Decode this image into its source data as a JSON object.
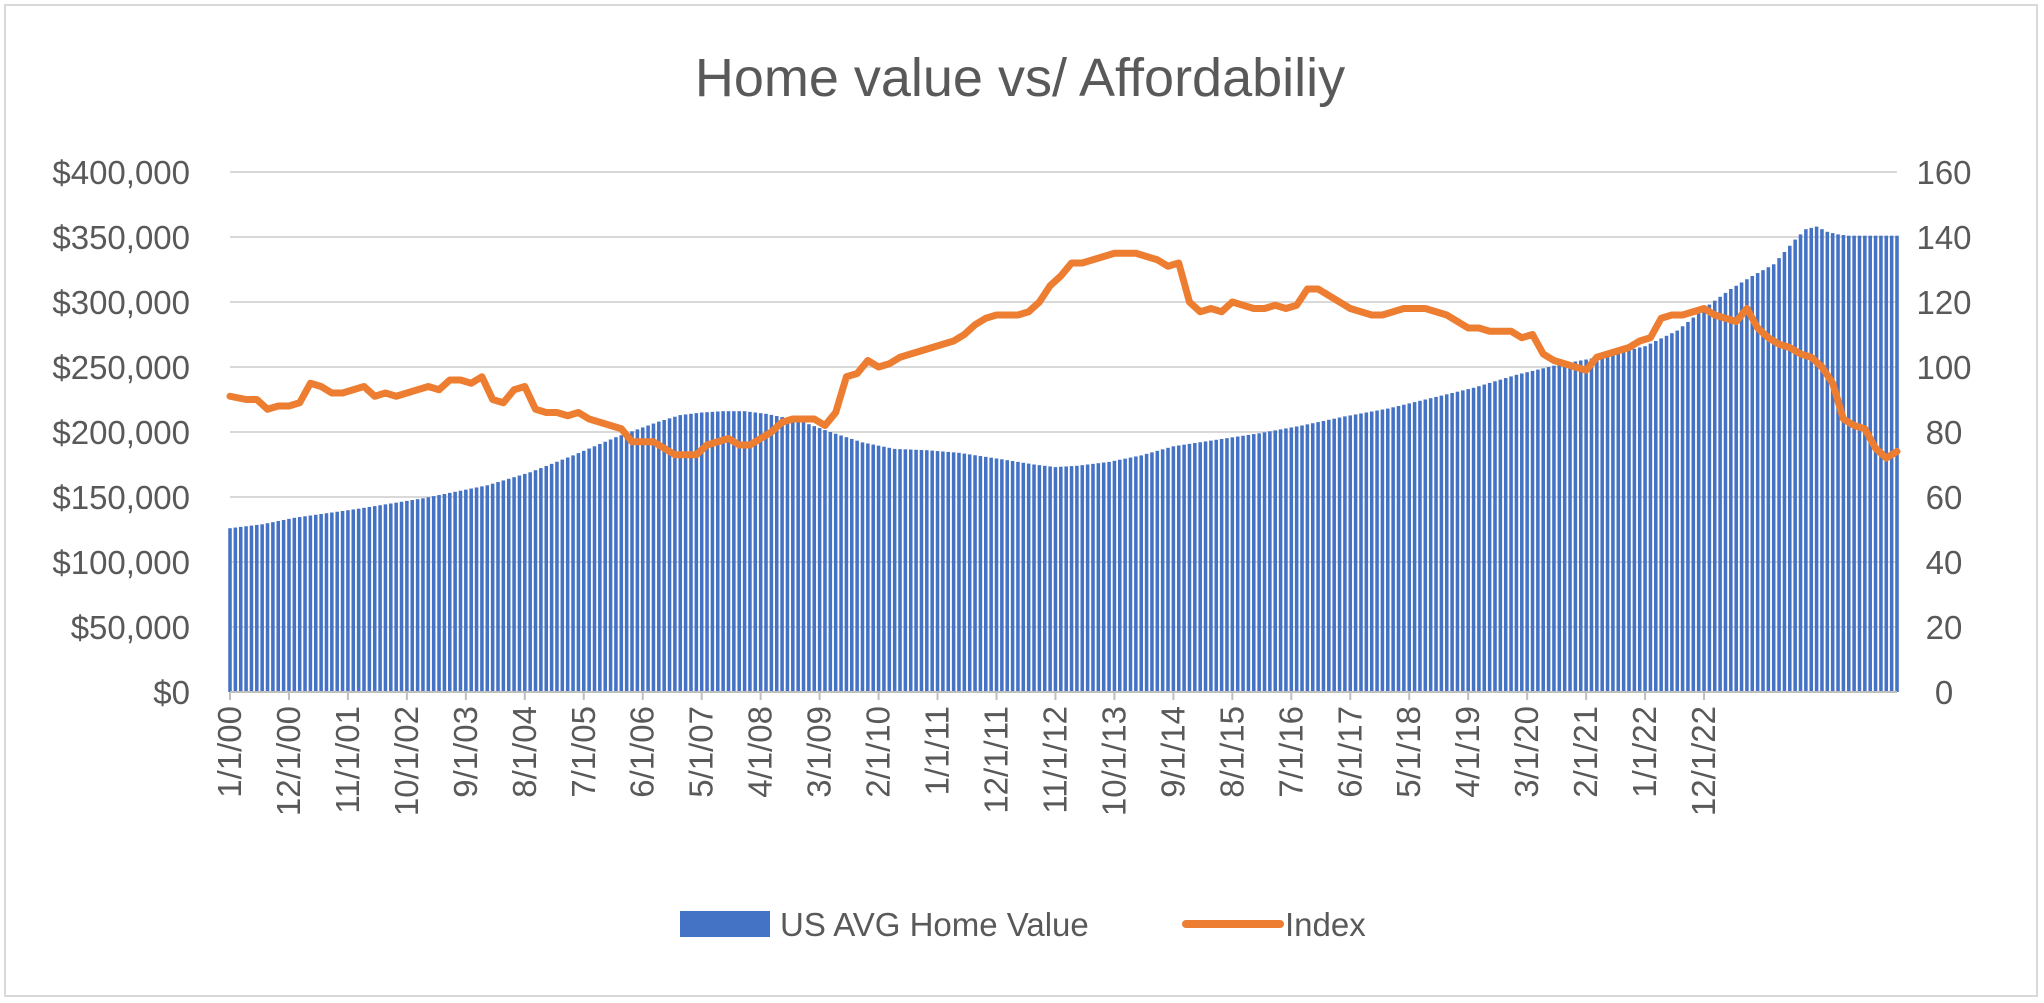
{
  "chart_data": {
    "type": "bar+line",
    "title": "Home value vs/ Affordabiliy",
    "x_tick_labels": [
      "1/1/00",
      "12/1/00",
      "11/1/01",
      "10/1/02",
      "9/1/03",
      "8/1/04",
      "7/1/05",
      "6/1/06",
      "5/1/07",
      "4/1/08",
      "3/1/09",
      "2/1/10",
      "1/1/11",
      "12/1/11",
      "11/1/12",
      "10/1/13",
      "9/1/14",
      "8/1/15",
      "7/1/16",
      "6/1/17",
      "5/1/18",
      "4/1/19",
      "3/1/20",
      "2/1/21",
      "1/1/22",
      "12/1/22"
    ],
    "y_left": {
      "min": 0,
      "max": 400000,
      "step": 50000,
      "tick_labels": [
        "$0",
        "$50,000",
        "$100,000",
        "$150,000",
        "$200,000",
        "$250,000",
        "$300,000",
        "$350,000",
        "$400,000"
      ]
    },
    "y_right": {
      "min": 0,
      "max": 160,
      "step": 20,
      "tick_labels": [
        "0",
        "20",
        "40",
        "60",
        "80",
        "100",
        "120",
        "140",
        "160"
      ]
    },
    "grid": true,
    "legend_position": "bottom",
    "series": [
      {
        "name": "US AVG Home Value",
        "type": "bar",
        "axis": "left",
        "color": "#4472c4",
        "points": [
          [
            0,
            126000
          ],
          [
            6,
            129000
          ],
          [
            12,
            134000
          ],
          [
            24,
            141000
          ],
          [
            36,
            149000
          ],
          [
            48,
            159000
          ],
          [
            56,
            169000
          ],
          [
            64,
            182000
          ],
          [
            72,
            196000
          ],
          [
            80,
            208000
          ],
          [
            84,
            213000
          ],
          [
            88,
            215000
          ],
          [
            92,
            216000
          ],
          [
            96,
            216000
          ],
          [
            100,
            214000
          ],
          [
            106,
            209000
          ],
          [
            112,
            200000
          ],
          [
            118,
            192000
          ],
          [
            124,
            187000
          ],
          [
            130,
            186000
          ],
          [
            136,
            184000
          ],
          [
            144,
            179000
          ],
          [
            150,
            175000
          ],
          [
            154,
            173000
          ],
          [
            158,
            174000
          ],
          [
            164,
            177000
          ],
          [
            170,
            182000
          ],
          [
            176,
            189000
          ],
          [
            184,
            194000
          ],
          [
            192,
            199000
          ],
          [
            200,
            205000
          ],
          [
            208,
            212000
          ],
          [
            216,
            218000
          ],
          [
            224,
            226000
          ],
          [
            232,
            234000
          ],
          [
            240,
            244000
          ],
          [
            248,
            252000
          ],
          [
            256,
            258000
          ],
          [
            264,
            266000
          ],
          [
            270,
            278000
          ],
          [
            276,
            298000
          ],
          [
            280,
            310000
          ],
          [
            284,
            320000
          ],
          [
            288,
            329000
          ],
          [
            292,
            348000
          ],
          [
            294,
            356000
          ],
          [
            296,
            358000
          ],
          [
            298,
            354000
          ],
          [
            300,
            352000
          ],
          [
            302,
            351000
          ]
        ]
      },
      {
        "name": "Index",
        "type": "line",
        "axis": "right",
        "color": "#ed7d31",
        "points": [
          [
            0,
            91
          ],
          [
            3,
            90
          ],
          [
            5,
            90
          ],
          [
            7,
            87
          ],
          [
            9,
            88
          ],
          [
            11,
            88
          ],
          [
            13,
            89
          ],
          [
            15,
            95
          ],
          [
            17,
            94
          ],
          [
            19,
            92
          ],
          [
            21,
            92
          ],
          [
            23,
            93
          ],
          [
            25,
            94
          ],
          [
            27,
            91
          ],
          [
            29,
            92
          ],
          [
            31,
            91
          ],
          [
            33,
            92
          ],
          [
            35,
            93
          ],
          [
            37,
            94
          ],
          [
            39,
            93
          ],
          [
            41,
            96
          ],
          [
            43,
            96
          ],
          [
            45,
            95
          ],
          [
            47,
            97
          ],
          [
            49,
            90
          ],
          [
            51,
            89
          ],
          [
            53,
            93
          ],
          [
            55,
            94
          ],
          [
            57,
            87
          ],
          [
            59,
            86
          ],
          [
            61,
            86
          ],
          [
            63,
            85
          ],
          [
            65,
            86
          ],
          [
            67,
            84
          ],
          [
            69,
            83
          ],
          [
            71,
            82
          ],
          [
            73,
            81
          ],
          [
            75,
            77
          ],
          [
            77,
            77
          ],
          [
            79,
            77
          ],
          [
            81,
            75
          ],
          [
            83,
            73
          ],
          [
            85,
            73
          ],
          [
            87,
            73
          ],
          [
            89,
            76
          ],
          [
            91,
            77
          ],
          [
            93,
            78
          ],
          [
            95,
            76
          ],
          [
            97,
            76
          ],
          [
            99,
            78
          ],
          [
            101,
            80
          ],
          [
            103,
            83
          ],
          [
            105,
            84
          ],
          [
            107,
            84
          ],
          [
            109,
            84
          ],
          [
            111,
            82
          ],
          [
            113,
            86
          ],
          [
            115,
            97
          ],
          [
            117,
            98
          ],
          [
            119,
            102
          ],
          [
            121,
            100
          ],
          [
            123,
            101
          ],
          [
            125,
            103
          ],
          [
            127,
            104
          ],
          [
            129,
            105
          ],
          [
            131,
            106
          ],
          [
            133,
            107
          ],
          [
            135,
            108
          ],
          [
            137,
            110
          ],
          [
            139,
            113
          ],
          [
            141,
            115
          ],
          [
            143,
            116
          ],
          [
            145,
            116
          ],
          [
            147,
            116
          ],
          [
            149,
            117
          ],
          [
            151,
            120
          ],
          [
            153,
            125
          ],
          [
            155,
            128
          ],
          [
            157,
            132
          ],
          [
            159,
            132
          ],
          [
            161,
            133
          ],
          [
            163,
            134
          ],
          [
            165,
            135
          ],
          [
            167,
            135
          ],
          [
            169,
            135
          ],
          [
            171,
            134
          ],
          [
            173,
            133
          ],
          [
            175,
            131
          ],
          [
            177,
            132
          ],
          [
            179,
            120
          ],
          [
            181,
            117
          ],
          [
            183,
            118
          ],
          [
            185,
            117
          ],
          [
            187,
            120
          ],
          [
            189,
            119
          ],
          [
            191,
            118
          ],
          [
            193,
            118
          ],
          [
            195,
            119
          ],
          [
            197,
            118
          ],
          [
            199,
            119
          ],
          [
            201,
            124
          ],
          [
            203,
            124
          ],
          [
            205,
            122
          ],
          [
            207,
            120
          ],
          [
            209,
            118
          ],
          [
            211,
            117
          ],
          [
            213,
            116
          ],
          [
            215,
            116
          ],
          [
            217,
            117
          ],
          [
            219,
            118
          ],
          [
            221,
            118
          ],
          [
            223,
            118
          ],
          [
            225,
            117
          ],
          [
            227,
            116
          ],
          [
            229,
            114
          ],
          [
            231,
            112
          ],
          [
            233,
            112
          ],
          [
            235,
            111
          ],
          [
            237,
            111
          ],
          [
            239,
            111
          ],
          [
            241,
            109
          ],
          [
            243,
            110
          ],
          [
            245,
            104
          ],
          [
            247,
            102
          ],
          [
            249,
            101
          ],
          [
            251,
            100
          ],
          [
            253,
            99
          ],
          [
            255,
            103
          ],
          [
            257,
            104
          ],
          [
            259,
            105
          ],
          [
            261,
            106
          ],
          [
            263,
            108
          ],
          [
            265,
            109
          ],
          [
            267,
            115
          ],
          [
            269,
            116
          ],
          [
            271,
            116
          ],
          [
            273,
            117
          ],
          [
            275,
            118
          ],
          [
            277,
            116
          ],
          [
            279,
            115
          ],
          [
            281,
            114
          ],
          [
            283,
            118
          ],
          [
            285,
            112
          ],
          [
            287,
            109
          ],
          [
            289,
            107
          ],
          [
            291,
            106
          ],
          [
            293,
            104
          ],
          [
            295,
            103
          ],
          [
            297,
            100
          ],
          [
            299,
            95
          ],
          [
            301,
            84
          ],
          [
            303,
            82
          ],
          [
            305,
            81
          ],
          [
            307,
            75
          ],
          [
            309,
            72
          ],
          [
            311,
            74
          ]
        ]
      }
    ]
  }
}
